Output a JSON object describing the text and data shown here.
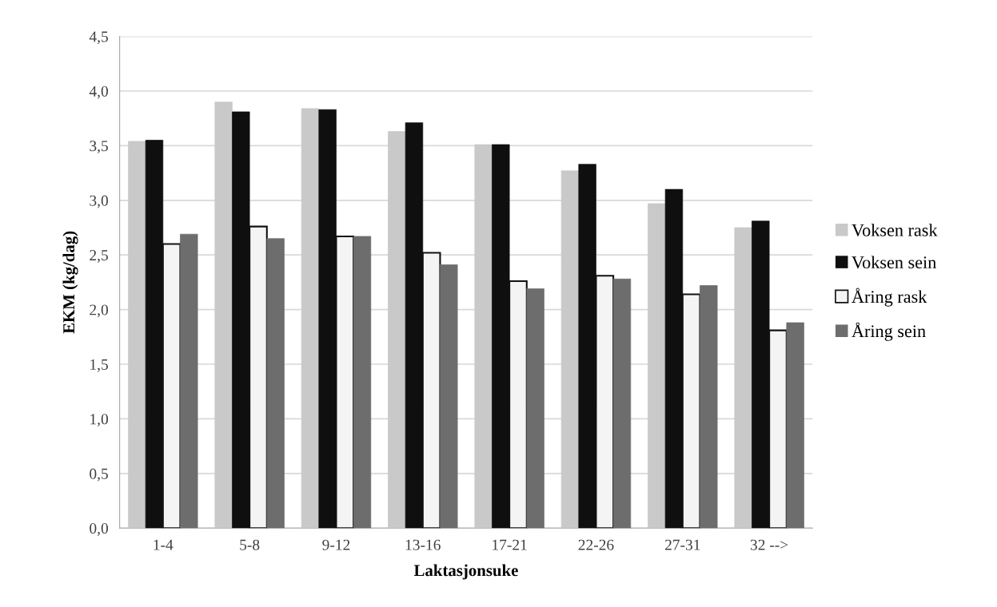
{
  "chart_data": {
    "type": "bar",
    "xlabel": "Laktasjonsuke",
    "ylabel": "EKM (kg/dag)",
    "categories": [
      "1-4",
      "5-8",
      "9-12",
      "13-16",
      "17-21",
      "22-26",
      "27-31",
      "32 -->"
    ],
    "series": [
      {
        "name": "Voksen rask",
        "color": "#c9c9c9",
        "values": [
          3.54,
          3.9,
          3.84,
          3.63,
          3.51,
          3.27,
          2.97,
          2.75
        ]
      },
      {
        "name": "Voksen sein",
        "color": "#0f0f0f",
        "values": [
          3.55,
          3.81,
          3.83,
          3.71,
          3.51,
          3.33,
          3.1,
          2.81
        ]
      },
      {
        "name": "Åring rask",
        "color": "#f4f4f4",
        "values": [
          2.6,
          2.76,
          2.67,
          2.52,
          2.26,
          2.31,
          2.14,
          1.81
        ]
      },
      {
        "name": "Åring sein",
        "color": "#6d6d6d",
        "values": [
          2.69,
          2.65,
          2.67,
          2.41,
          2.19,
          2.28,
          2.22,
          1.88
        ]
      }
    ],
    "ylim": [
      0,
      4.5
    ],
    "yticks": [
      {
        "value": 0,
        "label": "0,0"
      },
      {
        "value": 0.5,
        "label": "0,5"
      },
      {
        "value": 1,
        "label": "1,0"
      },
      {
        "value": 1.5,
        "label": "1,5"
      },
      {
        "value": 2,
        "label": "2,0"
      },
      {
        "value": 2.5,
        "label": "2,5"
      },
      {
        "value": 3,
        "label": "3,0"
      },
      {
        "value": 3.5,
        "label": "3,5"
      },
      {
        "value": 4,
        "label": "4,0"
      },
      {
        "value": 4.5,
        "label": "4,5"
      }
    ],
    "grid": "y",
    "legend": "right"
  }
}
